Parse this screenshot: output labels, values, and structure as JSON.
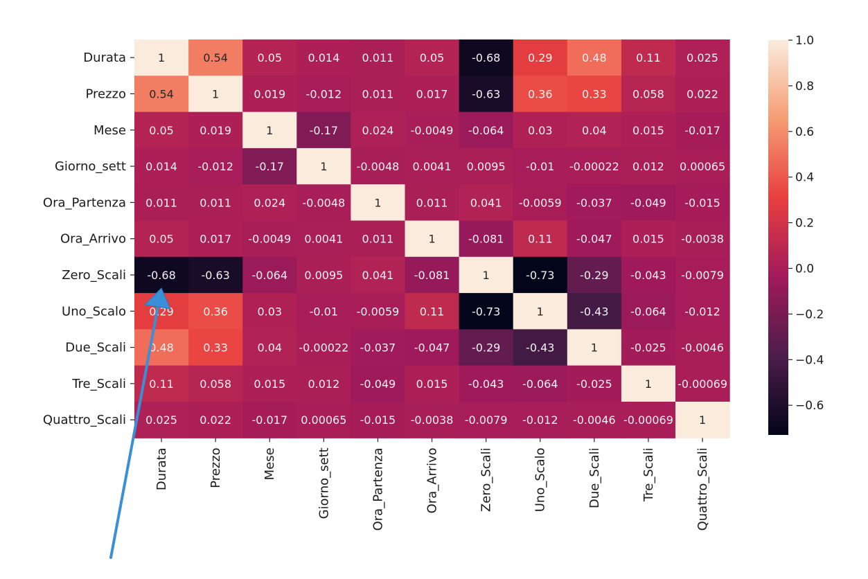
{
  "chart_data": {
    "type": "heatmap",
    "title": "",
    "xlabel": "",
    "ylabel": "",
    "row_labels": [
      "Durata",
      "Prezzo",
      "Mese",
      "Giorno_sett",
      "Ora_Partenza",
      "Ora_Arrivo",
      "Zero_Scali",
      "Uno_Scalo",
      "Due_Scali",
      "Tre_Scali",
      "Quattro_Scali"
    ],
    "column_labels": [
      "Durata",
      "Prezzo",
      "Mese",
      "Giorno_sett",
      "Ora_Partenza",
      "Ora_Arrivo",
      "Zero_Scali",
      "Uno_Scalo",
      "Due_Scali",
      "Tre_Scali",
      "Quattro_Scali"
    ],
    "values": [
      [
        1,
        0.54,
        0.05,
        0.014,
        0.011,
        0.05,
        -0.68,
        0.29,
        0.48,
        0.11,
        0.025
      ],
      [
        0.54,
        1,
        0.019,
        -0.012,
        0.011,
        0.017,
        -0.63,
        0.36,
        0.33,
        0.058,
        0.022
      ],
      [
        0.05,
        0.019,
        1,
        -0.17,
        0.024,
        -0.0049,
        -0.064,
        0.03,
        0.04,
        0.015,
        -0.017
      ],
      [
        0.014,
        -0.012,
        -0.17,
        1,
        -0.0048,
        0.0041,
        0.0095,
        -0.01,
        -0.00022,
        0.012,
        0.00065
      ],
      [
        0.011,
        0.011,
        0.024,
        -0.0048,
        1,
        0.011,
        0.041,
        -0.0059,
        -0.037,
        -0.049,
        -0.015
      ],
      [
        0.05,
        0.017,
        -0.0049,
        0.0041,
        0.011,
        1,
        -0.081,
        0.11,
        -0.047,
        0.015,
        -0.0038
      ],
      [
        -0.68,
        -0.63,
        -0.064,
        0.0095,
        0.041,
        -0.081,
        1,
        -0.73,
        -0.29,
        -0.043,
        -0.0079
      ],
      [
        0.29,
        0.36,
        0.03,
        -0.01,
        -0.0059,
        0.11,
        -0.73,
        1,
        -0.43,
        -0.064,
        -0.012
      ],
      [
        0.48,
        0.33,
        0.04,
        -0.00022,
        -0.037,
        -0.047,
        -0.29,
        -0.43,
        1,
        -0.025,
        -0.0046
      ],
      [
        0.11,
        0.058,
        0.015,
        0.012,
        -0.049,
        0.015,
        -0.043,
        -0.064,
        -0.025,
        1,
        -0.00069
      ],
      [
        0.025,
        0.022,
        -0.017,
        0.00065,
        -0.015,
        -0.0038,
        -0.0079,
        -0.012,
        -0.0046,
        -0.00069,
        1
      ]
    ],
    "annotations": true,
    "colorbar": {
      "range": [
        -0.73,
        1.0
      ],
      "ticks": [
        1.0,
        0.8,
        0.6,
        0.4,
        0.2,
        0.0,
        -0.2,
        -0.4,
        -0.6
      ],
      "tick_labels": [
        "1.0",
        "0.8",
        "0.6",
        "0.4",
        "0.2",
        "0.0",
        "−0.2",
        "−0.4",
        "−0.6"
      ],
      "colormap": "rocket",
      "colormap_stops": [
        "#03051a",
        "#4c1d4b",
        "#a11a5b",
        "#e83f3f",
        "#f69c73",
        "#faebdd"
      ]
    },
    "overlay_arrow": {
      "color": "#3a8fd6",
      "points_to": "Zero_Scali × Durata"
    }
  }
}
